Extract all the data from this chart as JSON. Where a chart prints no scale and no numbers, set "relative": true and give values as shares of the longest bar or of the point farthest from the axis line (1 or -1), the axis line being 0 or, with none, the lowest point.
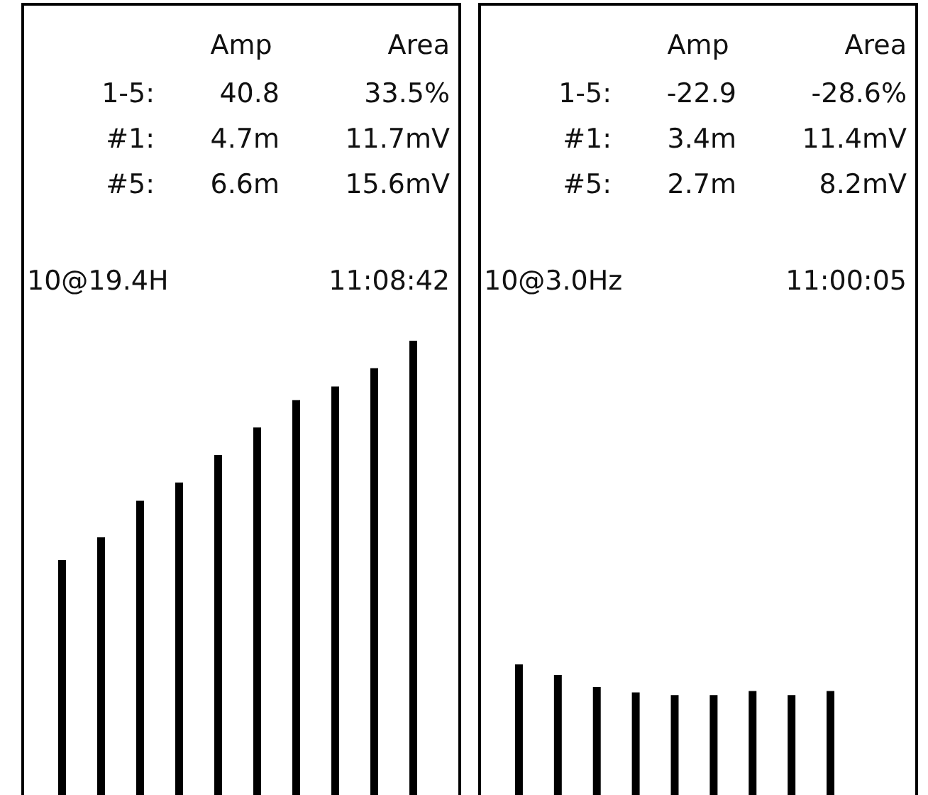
{
  "chart_data": [
    {
      "type": "bar",
      "relative": true,
      "categories": [
        null,
        null,
        null,
        null,
        null,
        null,
        null,
        null,
        null,
        null
      ],
      "values": [
        0.52,
        0.57,
        0.65,
        0.69,
        0.75,
        0.81,
        0.87,
        0.9,
        0.94,
        1
      ],
      "color": "#000000",
      "annotations": [
        "Amp",
        "Area",
        "1-5:",
        "40.8",
        "33.5%",
        "#1:",
        "4.7m",
        "11.7mV",
        "#5:",
        "6.6m",
        "15.6mV",
        "10@19.4H",
        "11:08:42"
      ]
    },
    {
      "type": "bar",
      "relative": true,
      "categories": [
        null,
        null,
        null,
        null,
        null,
        null,
        null,
        null,
        null
      ],
      "values": [
        1,
        0.92,
        0.83,
        0.79,
        0.77,
        0.77,
        0.8,
        0.77,
        0.8
      ],
      "color": "#000000",
      "annotations": [
        "Amp",
        "Area",
        "1-5:",
        "-22.9",
        "-28.6%",
        "#1:",
        "3.4m",
        "11.4mV",
        "#5:",
        "2.7m",
        "8.2mV",
        "10@3.0Hz",
        "11:00:05"
      ]
    }
  ]
}
